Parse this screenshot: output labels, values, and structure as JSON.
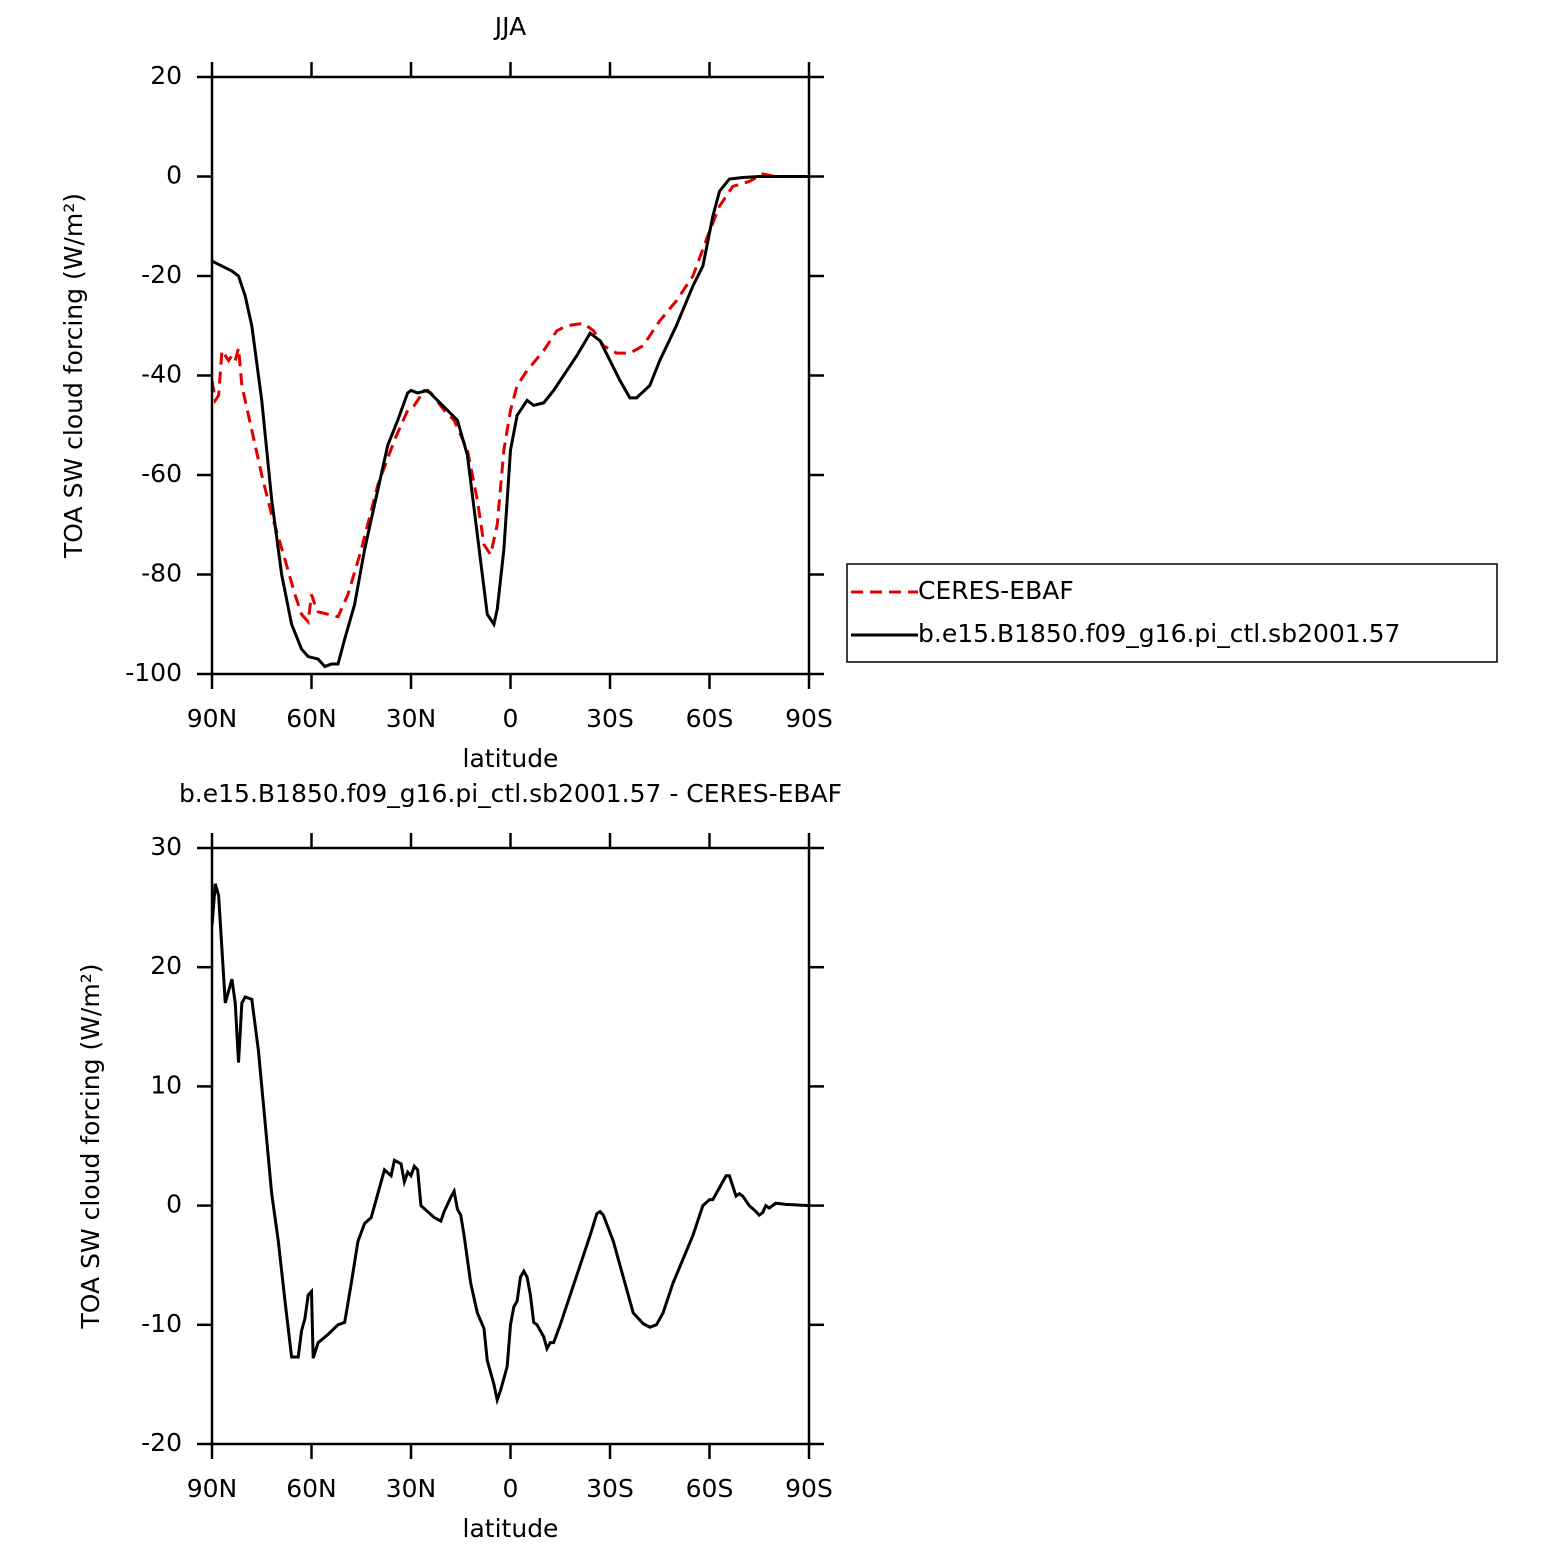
{
  "chart_data": [
    {
      "type": "line",
      "title": "JJA",
      "x_label": "latitude",
      "y_label": "TOA SW cloud forcing (W/m²)",
      "xlim": [
        90,
        -90
      ],
      "xticks": [
        {
          "value": 90,
          "label": "90N"
        },
        {
          "value": 60,
          "label": "60N"
        },
        {
          "value": 30,
          "label": "30N"
        },
        0,
        {
          "value": -30,
          "label": "30S"
        },
        {
          "value": -60,
          "label": "60S"
        },
        {
          "value": -90,
          "label": "90S"
        }
      ],
      "ylim": [
        -100,
        20
      ],
      "yticks": [
        -100,
        -80,
        -60,
        -40,
        -20,
        0,
        20
      ],
      "legend": "outside-right",
      "series": [
        {
          "name": "CERES-EBAF",
          "color": "#e00000",
          "line_style": "dashed",
          "x": [
            90,
            89,
            88,
            87,
            85,
            84,
            83,
            82,
            81,
            78,
            75,
            72,
            68,
            65,
            63,
            61,
            60,
            59,
            58,
            55,
            52,
            49,
            45,
            40,
            35,
            31,
            29,
            26,
            24,
            20,
            17,
            13,
            10,
            8,
            6,
            4,
            2,
            0,
            -2,
            -5,
            -10,
            -14,
            -17,
            -22,
            -25,
            -28,
            -32,
            -36,
            -40,
            -45,
            -50,
            -55,
            -60,
            -63,
            -67,
            -72,
            -76,
            -80,
            -90
          ],
          "values": [
            -41,
            -45,
            -44,
            -35,
            -37,
            -36,
            -37,
            -34.5,
            -42,
            -51,
            -60,
            -68,
            -77,
            -84,
            -88,
            -89.5,
            -84,
            -86,
            -87.5,
            -88,
            -88.5,
            -84,
            -75,
            -62,
            -53,
            -47,
            -46,
            -43,
            -43.5,
            -47,
            -49,
            -55,
            -65,
            -74,
            -76,
            -70,
            -55,
            -47,
            -42,
            -39,
            -35,
            -31,
            -30,
            -29.5,
            -31,
            -34,
            -35.5,
            -35.5,
            -34,
            -29,
            -25,
            -20,
            -11,
            -6,
            -2,
            -1,
            0.5,
            0,
            0
          ]
        },
        {
          "name": "b.e15.B1850.f09_g16.pi_ctl.sb2001.57",
          "color": "#000000",
          "line_style": "solid",
          "x": [
            90,
            87,
            84,
            82,
            80,
            78,
            75,
            72,
            69,
            66,
            63,
            61,
            58,
            56,
            54,
            52,
            50,
            47,
            44,
            40,
            37,
            34,
            31,
            30,
            28,
            25,
            22,
            19,
            16,
            13,
            10,
            7,
            5,
            4,
            2,
            0,
            -2,
            -5,
            -7,
            -10,
            -13,
            -17,
            -20,
            -24,
            -27,
            -30,
            -33,
            -36,
            -38,
            -42,
            -45,
            -50,
            -55,
            -58,
            -61,
            -63,
            -66,
            -70,
            -75,
            -80,
            -90
          ],
          "values": [
            -17,
            -18,
            -19,
            -20,
            -24,
            -30,
            -45,
            -65,
            -80,
            -90,
            -95,
            -96.5,
            -97,
            -98.5,
            -98,
            -98,
            -93,
            -86,
            -75,
            -63,
            -54,
            -49,
            -43.5,
            -43,
            -43.5,
            -43,
            -45,
            -47,
            -49,
            -56,
            -72,
            -88,
            -90,
            -87,
            -75,
            -55,
            -48,
            -45,
            -46,
            -45.5,
            -43,
            -39,
            -36,
            -31.5,
            -33,
            -37,
            -41,
            -44.5,
            -44.5,
            -42,
            -37,
            -30,
            -22,
            -18,
            -8,
            -3,
            -0.5,
            -0.2,
            0,
            0,
            0
          ]
        }
      ]
    },
    {
      "type": "line",
      "title": "b.e15.B1850.f09_g16.pi_ctl.sb2001.57 - CERES-EBAF",
      "x_label": "latitude",
      "y_label": "TOA SW cloud forcing (W/m²)",
      "xlim": [
        90,
        -90
      ],
      "xticks": [
        {
          "value": 90,
          "label": "90N"
        },
        {
          "value": 60,
          "label": "60N"
        },
        {
          "value": 30,
          "label": "30N"
        },
        0,
        {
          "value": -30,
          "label": "30S"
        },
        {
          "value": -60,
          "label": "60S"
        },
        {
          "value": -90,
          "label": "90S"
        }
      ],
      "ylim": [
        -20,
        30
      ],
      "yticks": [
        -20,
        -10,
        0,
        10,
        20,
        30
      ],
      "color": "#000000",
      "x": [
        90,
        89,
        88,
        86,
        85,
        84,
        83,
        82,
        81,
        80,
        78,
        76,
        74,
        72,
        70,
        68,
        66,
        64,
        63,
        62,
        61,
        60,
        59.5,
        58,
        55,
        52,
        50,
        48,
        46,
        44,
        42,
        40,
        38,
        36,
        35,
        33,
        32,
        31,
        30,
        29,
        28,
        27,
        25,
        23,
        21,
        20,
        18,
        17,
        16,
        15,
        14,
        12,
        10,
        8,
        7,
        5,
        4,
        3,
        1,
        0,
        -1,
        -2,
        -3,
        -4,
        -5,
        -6,
        -7,
        -8,
        -10,
        -11,
        -12,
        -13,
        -15,
        -18,
        -21,
        -24,
        -26,
        -27,
        -28,
        -31,
        -34,
        -37,
        -40,
        -42,
        -44,
        -46,
        -49,
        -52,
        -55,
        -58,
        -60,
        -61,
        -63,
        -65,
        -66,
        -68,
        -69,
        -70,
        -72,
        -74,
        -75,
        -76,
        -77,
        -78,
        -80,
        -83,
        -90
      ],
      "values": [
        23.5,
        27,
        26,
        17,
        18,
        19,
        17,
        12,
        17,
        17.5,
        17.3,
        13,
        7,
        1,
        -3,
        -8,
        -12.7,
        -12.7,
        -10.5,
        -9.5,
        -7.5,
        -7.2,
        -12.8,
        -11.5,
        -10.8,
        -10,
        -9.8,
        -6.5,
        -3,
        -1.5,
        -1,
        1,
        3,
        2.5,
        3.8,
        3.5,
        2,
        2.8,
        2.5,
        3.3,
        3,
        0,
        -0.5,
        -1,
        -1.3,
        -0.5,
        0.7,
        1.2,
        -0.3,
        -0.8,
        -2.5,
        -6.5,
        -9,
        -10.3,
        -13,
        -15,
        -16.3,
        -15.5,
        -13.5,
        -10,
        -8.5,
        -8,
        -6,
        -5.5,
        -6,
        -7.5,
        -9.8,
        -10,
        -11,
        -12,
        -11.5,
        -11.5,
        -10,
        -7.5,
        -5,
        -2.5,
        -0.7,
        -0.5,
        -0.8,
        -3,
        -6,
        -9,
        -9.9,
        -10.2,
        -10,
        -9,
        -6.5,
        -4.5,
        -2.5,
        0,
        0.5,
        0.5,
        1.5,
        2.5,
        2.5,
        0.8,
        1,
        0.8,
        0,
        -0.5,
        -0.8,
        -0.6,
        0,
        -0.2,
        0.2,
        0.1,
        0
      ]
    }
  ]
}
